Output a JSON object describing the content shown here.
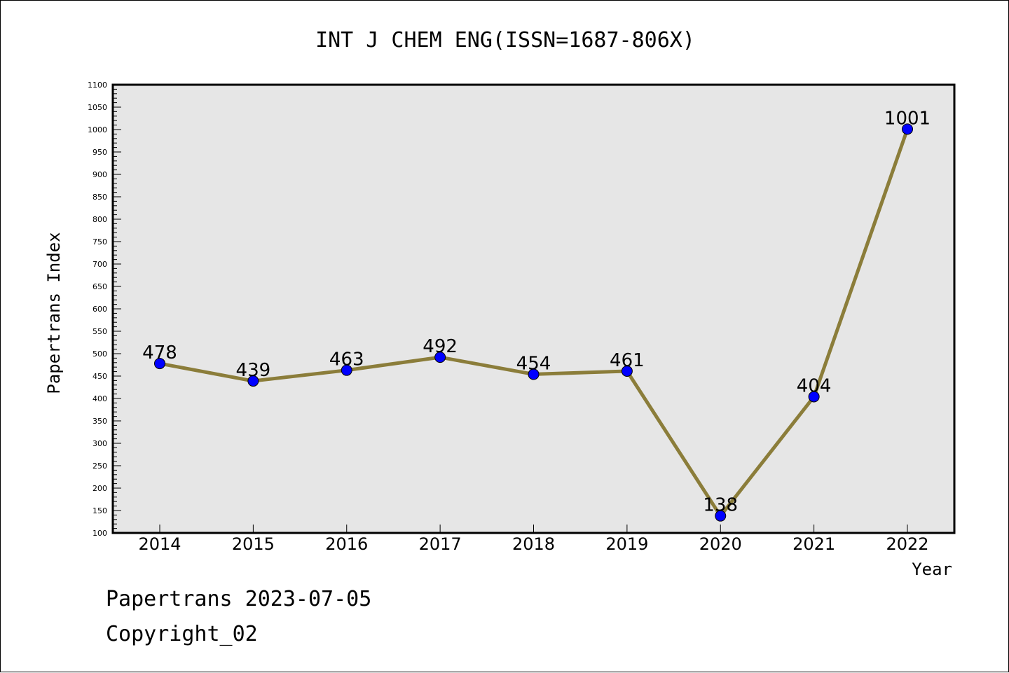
{
  "chart_data": {
    "type": "line",
    "title": "INT J CHEM ENG(ISSN=1687-806X)",
    "xlabel": "Year",
    "ylabel": "Papertrans Index",
    "categories": [
      "2014",
      "2015",
      "2016",
      "2017",
      "2018",
      "2019",
      "2020",
      "2021",
      "2022"
    ],
    "values": [
      478,
      439,
      463,
      492,
      454,
      461,
      138,
      404,
      1001
    ],
    "ylim": [
      100,
      1100
    ],
    "yticks": [
      "100",
      "150",
      "200",
      "250",
      "300",
      "350",
      "400",
      "450",
      "500",
      "550",
      "600",
      "650",
      "700",
      "750",
      "800",
      "850",
      "900",
      "950",
      "1000",
      "1050",
      "1100"
    ],
    "grid": false,
    "line_color": "#8b7d3a",
    "marker_color": "#0000ff",
    "plot_background": "#e6e6e6"
  },
  "footer": {
    "line1": "Papertrans 2023-07-05",
    "line2": "Copyright_02"
  }
}
